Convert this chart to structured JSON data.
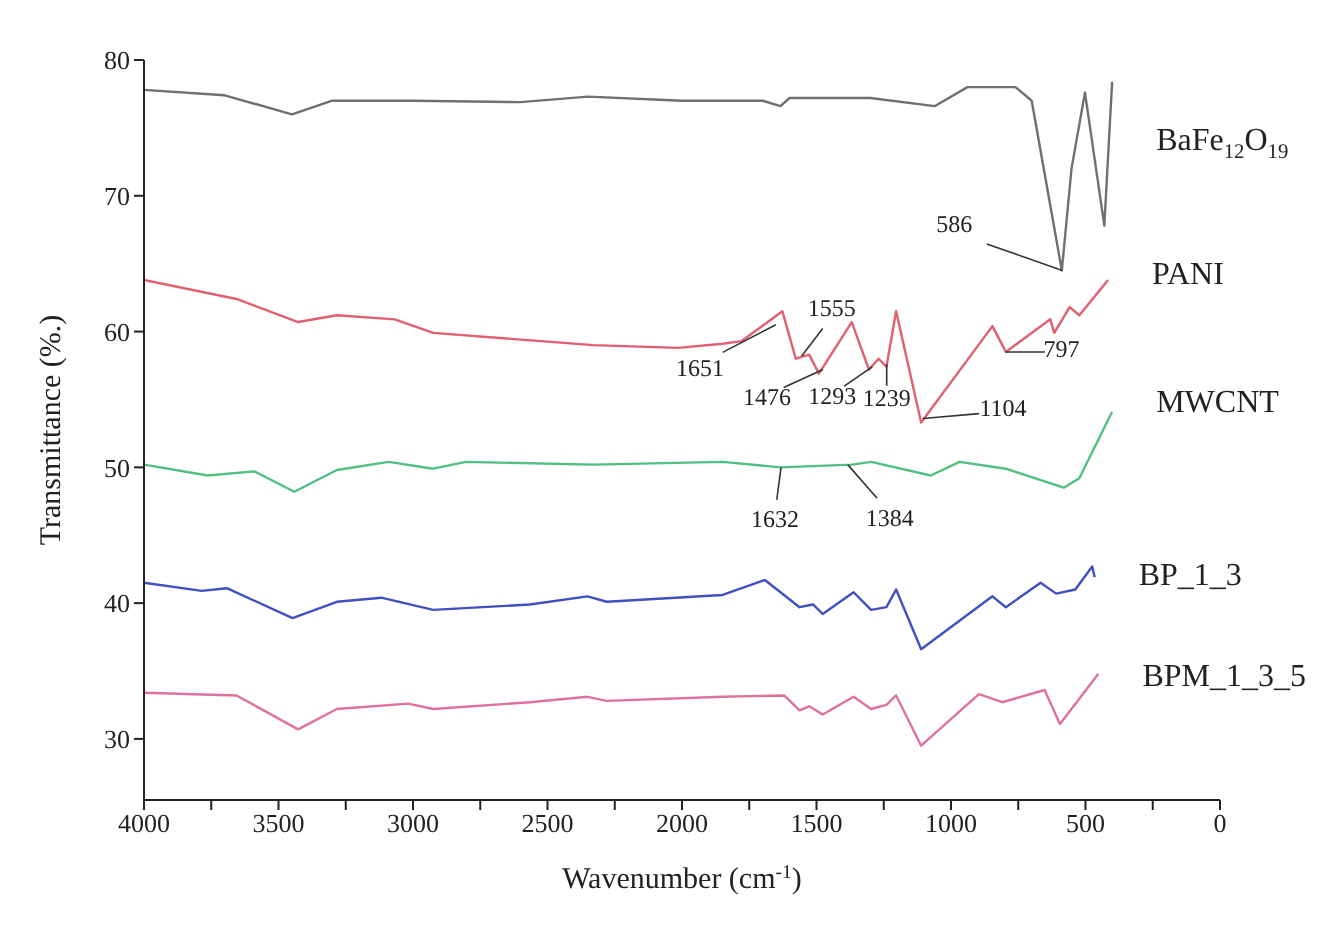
{
  "chart_data": {
    "type": "line",
    "xlabel": "Wavenumber (cm$^{-1}$)",
    "ylabel": "Transmittance (%.)",
    "xlim": [
      4000,
      0
    ],
    "ylim": [
      25.5,
      80
    ],
    "xticks": [
      4000,
      {
        "value": 3750,
        "label": null
      },
      3500,
      {
        "value": 3250,
        "label": null
      },
      3000,
      {
        "value": 2750,
        "label": null
      },
      2500,
      {
        "value": 2250,
        "label": null
      },
      2000,
      {
        "value": 1750,
        "label": null
      },
      1500,
      {
        "value": 1250,
        "label": null
      },
      1000,
      {
        "value": 750,
        "label": null
      },
      500,
      {
        "value": 250,
        "label": null
      },
      0
    ],
    "yticks": [
      30,
      40,
      50,
      60,
      70,
      80
    ],
    "grid": false,
    "legend": false,
    "marker": "none",
    "line_style": "solid",
    "series": [
      {
        "name": "BaFe$_{12}$O$_{19}$",
        "color": "#707070",
        "x": [
          4000,
          3700,
          3450,
          3300,
          3000,
          2600,
          2350,
          2000,
          1700,
          1634,
          1600,
          1300,
          1061,
          939,
          760,
          700,
          588,
          552,
          502,
          430,
          401
        ],
        "values": [
          77.8,
          77.4,
          76.0,
          77.0,
          77.0,
          76.9,
          77.3,
          77.0,
          77.0,
          76.6,
          77.2,
          77.2,
          76.6,
          78.0,
          78.0,
          77.0,
          64.5,
          72.0,
          77.6,
          67.8,
          78.4
        ]
      },
      {
        "name": "PANI",
        "color": "#e06070",
        "x": [
          4000,
          3656,
          3427,
          3283,
          3068,
          2925,
          2330,
          2014,
          1849,
          1778,
          1627,
          1577,
          1527,
          1491,
          1369,
          1305,
          1269,
          1240,
          1204,
          1111,
          846,
          796,
          631,
          616,
          559,
          523,
          416
        ],
        "values": [
          63.8,
          62.4,
          60.7,
          61.2,
          60.9,
          59.9,
          59.0,
          58.8,
          59.1,
          59.3,
          61.5,
          58.0,
          58.3,
          56.9,
          60.7,
          57.2,
          58.0,
          57.4,
          61.5,
          53.3,
          60.4,
          58.5,
          60.9,
          59.9,
          61.8,
          61.2,
          63.8
        ]
      },
      {
        "name": "MWCNT",
        "color": "#50c080",
        "x": [
          4000,
          3763,
          3590,
          3441,
          3283,
          3090,
          2925,
          2803,
          2330,
          1849,
          1634,
          1369,
          1297,
          1075,
          968,
          796,
          581,
          523,
          401
        ],
        "values": [
          50.2,
          49.4,
          49.7,
          48.2,
          49.8,
          50.4,
          49.9,
          50.4,
          50.2,
          50.4,
          50.0,
          50.2,
          50.4,
          49.4,
          50.4,
          49.9,
          48.5,
          49.2,
          54.1
        ]
      },
      {
        "name": "BP_1_3",
        "color": "#4050c0",
        "x": [
          4000,
          3785,
          3692,
          3448,
          3283,
          3118,
          2925,
          2566,
          2351,
          2280,
          1849,
          1692,
          1563,
          1513,
          1477,
          1362,
          1297,
          1240,
          1204,
          1111,
          846,
          796,
          667,
          609,
          538,
          475,
          466
        ],
        "values": [
          41.5,
          40.9,
          41.1,
          38.9,
          40.1,
          40.4,
          39.5,
          39.9,
          40.5,
          40.1,
          40.6,
          41.7,
          39.7,
          39.9,
          39.2,
          40.8,
          39.5,
          39.7,
          41.0,
          36.6,
          40.5,
          39.7,
          41.5,
          40.7,
          41.0,
          42.7,
          41.9
        ]
      },
      {
        "name": "BPM_1_3_5",
        "color": "#e070a0",
        "x": [
          4000,
          3656,
          3427,
          3283,
          3018,
          2925,
          2566,
          2351,
          2280,
          1849,
          1620,
          1563,
          1527,
          1477,
          1362,
          1297,
          1240,
          1204,
          1111,
          896,
          810,
          652,
          595,
          452
        ],
        "values": [
          33.4,
          33.2,
          30.7,
          32.2,
          32.6,
          32.2,
          32.7,
          33.1,
          32.8,
          33.1,
          33.2,
          32.1,
          32.4,
          31.8,
          33.1,
          32.2,
          32.5,
          33.2,
          29.5,
          33.3,
          32.7,
          33.6,
          31.1,
          34.8
        ]
      }
    ],
    "annotations": [
      {
        "text": "586",
        "x": 586,
        "y": 64.5
      },
      {
        "text": "1651",
        "x": 1651,
        "y": 60.5
      },
      {
        "text": "1555",
        "x": 1555,
        "y": 58.2
      },
      {
        "text": "1476",
        "x": 1476,
        "y": 57.2
      },
      {
        "text": "1293",
        "x": 1293,
        "y": 57.4
      },
      {
        "text": "1239",
        "x": 1239,
        "y": 57.6
      },
      {
        "text": "1104",
        "x": 1104,
        "y": 53.6
      },
      {
        "text": "797",
        "x": 797,
        "y": 58.5
      },
      {
        "text": "1632",
        "x": 1632,
        "y": 50.0
      },
      {
        "text": "1384",
        "x": 1384,
        "y": 50.2
      }
    ]
  }
}
